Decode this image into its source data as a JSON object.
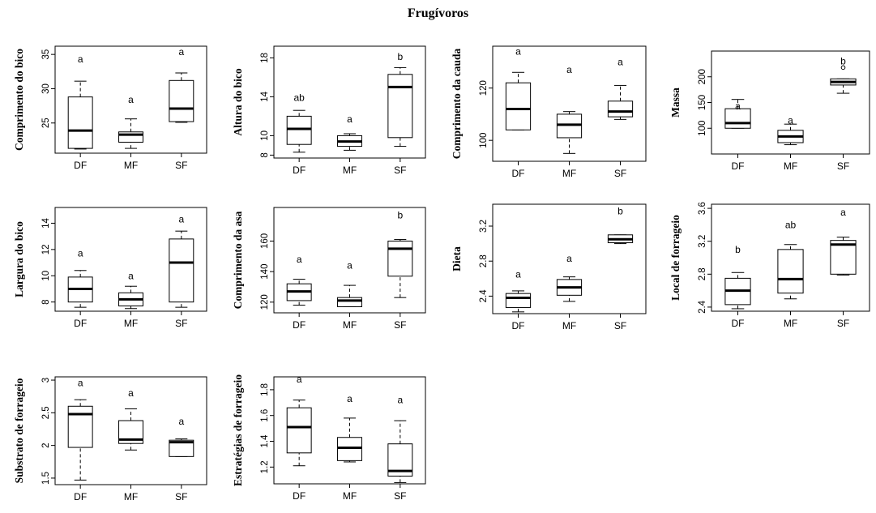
{
  "figure_title": "Frugívoros",
  "chart_data": [
    {
      "type": "boxplot",
      "ylabel": "Comprimento do bico",
      "categories": [
        "DF",
        "MF",
        "SF"
      ],
      "ylim": [
        20.6,
        36.2
      ],
      "yticks": [
        25,
        30,
        35
      ],
      "boxes": [
        {
          "min": 21.2,
          "q1": 21.3,
          "median": 23.9,
          "q3": 28.8,
          "max": 31.1
        },
        {
          "min": 21.3,
          "q1": 22.2,
          "median": 23.3,
          "q3": 23.7,
          "max": 25.6
        },
        {
          "min": 25.1,
          "q1": 25.2,
          "median": 27.1,
          "q3": 31.2,
          "max": 32.3
        }
      ],
      "letters": [
        "a",
        "a",
        "a"
      ],
      "letter_y": [
        34.3,
        28.4,
        35.4
      ],
      "outliers": [
        [],
        [],
        []
      ]
    },
    {
      "type": "boxplot",
      "ylabel": "Altura do bico",
      "categories": [
        "DF",
        "MF",
        "SF"
      ],
      "ylim": [
        7.7,
        19.2
      ],
      "yticks": [
        8,
        10,
        14,
        18
      ],
      "boxes": [
        {
          "min": 8.3,
          "q1": 9.1,
          "median": 10.7,
          "q3": 12.0,
          "max": 12.6
        },
        {
          "min": 8.5,
          "q1": 8.9,
          "median": 9.4,
          "q3": 10.0,
          "max": 10.2
        },
        {
          "min": 8.9,
          "q1": 9.8,
          "median": 15.0,
          "q3": 16.3,
          "max": 17.0
        }
      ],
      "letters": [
        "ab",
        "a",
        "b"
      ],
      "letter_y": [
        13.9,
        11.7,
        18.1
      ],
      "outliers": [
        [],
        [],
        []
      ]
    },
    {
      "type": "boxplot",
      "ylabel": "Comprimento da cauda",
      "categories": [
        "DF",
        "MF",
        "SF"
      ],
      "ylim": [
        92,
        136
      ],
      "yticks": [
        100,
        120
      ],
      "boxes": [
        {
          "min": 104,
          "q1": 104,
          "median": 112,
          "q3": 122,
          "max": 126
        },
        {
          "min": 95,
          "q1": 101,
          "median": 106,
          "q3": 110,
          "max": 111
        },
        {
          "min": 108,
          "q1": 109,
          "median": 111,
          "q3": 115,
          "max": 121
        }
      ],
      "letters": [
        "a",
        "a",
        "a"
      ],
      "letter_y": [
        134,
        127,
        130
      ],
      "outliers": [
        [],
        [],
        []
      ]
    },
    {
      "type": "boxplot",
      "ylabel": "Massa",
      "categories": [
        "DF",
        "MF",
        "SF"
      ],
      "ylim": [
        50,
        250
      ],
      "yticks": [
        100,
        150,
        200
      ],
      "boxes": [
        {
          "min": 100,
          "q1": 100,
          "median": 110,
          "q3": 138,
          "max": 156
        },
        {
          "min": 68,
          "q1": 72,
          "median": 84,
          "q3": 96,
          "max": 108
        },
        {
          "min": 168,
          "q1": 184,
          "median": 190,
          "q3": 196,
          "max": 196
        }
      ],
      "letters": [
        "a",
        "a",
        "b"
      ],
      "letter_y": [
        143,
        115,
        230
      ],
      "outliers": [
        [],
        [],
        [
          218
        ]
      ]
    },
    {
      "type": "boxplot",
      "ylabel": "Largura do bico",
      "categories": [
        "DF",
        "MF",
        "SF"
      ],
      "ylim": [
        7.3,
        15.2
      ],
      "yticks": [
        8,
        10,
        12,
        14
      ],
      "boxes": [
        {
          "min": 7.6,
          "q1": 8.0,
          "median": 9.0,
          "q3": 9.9,
          "max": 10.4
        },
        {
          "min": 7.5,
          "q1": 7.7,
          "median": 8.2,
          "q3": 8.7,
          "max": 9.2
        },
        {
          "min": 7.6,
          "q1": 8.0,
          "median": 11.0,
          "q3": 12.8,
          "max": 13.4
        }
      ],
      "letters": [
        "a",
        "a",
        "a"
      ],
      "letter_y": [
        11.7,
        10.0,
        14.3
      ],
      "outliers": [
        [],
        [],
        []
      ]
    },
    {
      "type": "boxplot",
      "ylabel": "Comprimento da asa",
      "categories": [
        "DF",
        "MF",
        "SF"
      ],
      "ylim": [
        113,
        182
      ],
      "yticks": [
        120,
        140,
        160
      ],
      "boxes": [
        {
          "min": 118,
          "q1": 121,
          "median": 127,
          "q3": 132,
          "max": 135
        },
        {
          "min": 117,
          "q1": 117,
          "median": 121,
          "q3": 123,
          "max": 131
        },
        {
          "min": 123,
          "q1": 137,
          "median": 155,
          "q3": 160,
          "max": 161
        }
      ],
      "letters": [
        "a",
        "a",
        "b"
      ],
      "letter_y": [
        148,
        144,
        177
      ],
      "outliers": [
        [],
        [],
        []
      ]
    },
    {
      "type": "boxplot",
      "ylabel": "Dieta",
      "categories": [
        "DF",
        "MF",
        "SF"
      ],
      "ylim": [
        2.2,
        3.45
      ],
      "yticks": [
        2.4,
        2.8,
        3.2
      ],
      "boxes": [
        {
          "min": 2.22,
          "q1": 2.27,
          "median": 2.38,
          "q3": 2.43,
          "max": 2.46
        },
        {
          "min": 2.34,
          "q1": 2.41,
          "median": 2.5,
          "q3": 2.59,
          "max": 2.62
        },
        {
          "min": 3.0,
          "q1": 3.01,
          "median": 3.05,
          "q3": 3.1,
          "max": 3.1
        }
      ],
      "letters": [
        "a",
        "a",
        "b"
      ],
      "letter_y": [
        2.65,
        2.83,
        3.37
      ],
      "outliers": [
        [],
        [],
        []
      ]
    },
    {
      "type": "boxplot",
      "ylabel": "Local de forrageio",
      "categories": [
        "DF",
        "MF",
        "SF"
      ],
      "ylim": [
        2.35,
        3.65
      ],
      "yticks": [
        2.4,
        2.8,
        3.2,
        3.6
      ],
      "boxes": [
        {
          "min": 2.38,
          "q1": 2.43,
          "median": 2.6,
          "q3": 2.75,
          "max": 2.82
        },
        {
          "min": 2.5,
          "q1": 2.57,
          "median": 2.74,
          "q3": 3.1,
          "max": 3.16
        },
        {
          "min": 2.79,
          "q1": 2.8,
          "median": 3.16,
          "q3": 3.21,
          "max": 3.25
        }
      ],
      "letters": [
        "b",
        "ab",
        "a"
      ],
      "letter_y": [
        3.1,
        3.4,
        3.55
      ],
      "outliers": [
        [],
        [],
        []
      ]
    },
    {
      "type": "boxplot",
      "ylabel": "Substrato de forrageio",
      "categories": [
        "DF",
        "MF",
        "SF"
      ],
      "ylim": [
        1.4,
        3.05
      ],
      "yticks": [
        1.5,
        2.0,
        2.5,
        3.0
      ],
      "boxes": [
        {
          "min": 1.47,
          "q1": 1.97,
          "median": 2.48,
          "q3": 2.6,
          "max": 2.7
        },
        {
          "min": 1.93,
          "q1": 2.03,
          "median": 2.09,
          "q3": 2.38,
          "max": 2.56
        },
        {
          "min": 1.83,
          "q1": 1.83,
          "median": 2.05,
          "q3": 2.08,
          "max": 2.1
        }
      ],
      "letters": [
        "a",
        "a",
        "a"
      ],
      "letter_y": [
        2.96,
        2.8,
        2.37
      ],
      "outliers": [
        [],
        [],
        []
      ]
    },
    {
      "type": "boxplot",
      "ylabel": "Estratégias de forrageio",
      "categories": [
        "DF",
        "MF",
        "SF"
      ],
      "ylim": [
        1.07,
        1.9
      ],
      "yticks": [
        1.2,
        1.4,
        1.6,
        1.8
      ],
      "boxes": [
        {
          "min": 1.21,
          "q1": 1.31,
          "median": 1.51,
          "q3": 1.66,
          "max": 1.72
        },
        {
          "min": 1.24,
          "q1": 1.25,
          "median": 1.35,
          "q3": 1.43,
          "max": 1.58
        },
        {
          "min": 1.08,
          "q1": 1.13,
          "median": 1.17,
          "q3": 1.38,
          "max": 1.56
        }
      ],
      "letters": [
        "a",
        "a",
        "a"
      ],
      "letter_y": [
        1.88,
        1.73,
        1.72
      ],
      "outliers": [
        [],
        [],
        []
      ]
    }
  ]
}
